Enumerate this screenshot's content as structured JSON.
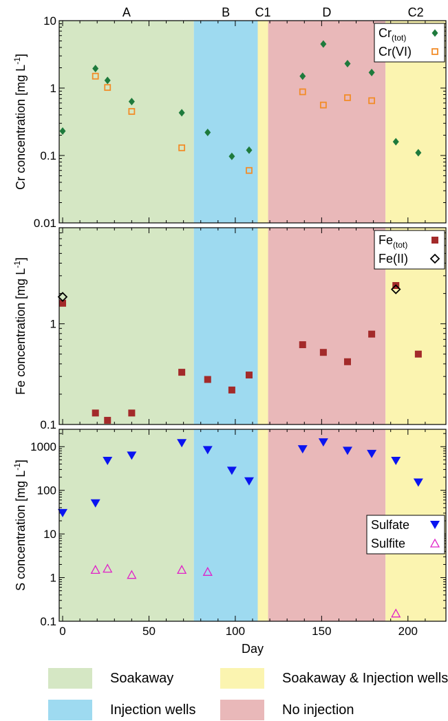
{
  "chart_data": {
    "type": "scatter",
    "xlabel": "Day",
    "xlim": [
      -2,
      222
    ],
    "xticks": [
      0,
      50,
      100,
      150,
      200
    ],
    "phases": [
      {
        "label": "A",
        "key": "soakaway",
        "x0": -2,
        "x1": 76
      },
      {
        "label": "B",
        "key": "injection",
        "x0": 76,
        "x1": 113
      },
      {
        "label": "C1",
        "key": "both",
        "x0": 113,
        "x1": 119
      },
      {
        "label": "D",
        "key": "none",
        "x0": 119,
        "x1": 187
      },
      {
        "label": "C2",
        "key": "both",
        "x0": 187,
        "x1": 222
      }
    ],
    "phase_colors": {
      "soakaway": "#d5e7c4",
      "injection": "#9edaf0",
      "both": "#fbf4b0",
      "none": "#e9b8b9"
    },
    "panels": [
      {
        "ylabel": "Cr concentration [mg L",
        "ylabel_sup": "-1",
        "ylabel_end": "]",
        "yscale": "log",
        "ylim": [
          0.01,
          10
        ],
        "yticks": [
          {
            "v": 0.01,
            "t": "0.01"
          },
          {
            "v": 0.1,
            "t": "0.1"
          },
          {
            "v": 1,
            "t": "1"
          },
          {
            "v": 10,
            "t": "10"
          }
        ],
        "legend_position": "top-right",
        "series": [
          {
            "name": "Cr",
            "sub": "(tot)",
            "marker": "diamond-filled",
            "color": "#1e7a3c",
            "x": [
              0,
              19,
              26,
              40,
              69,
              84,
              98,
              108,
              139,
              151,
              165,
              179,
              193,
              206
            ],
            "y": [
              0.23,
              1.95,
              1.3,
              0.63,
              0.43,
              0.22,
              0.097,
              0.12,
              1.5,
              4.5,
              2.3,
              1.7,
              0.16,
              0.11
            ]
          },
          {
            "name": "Cr(VI)",
            "sub": "",
            "marker": "square-open",
            "color": "#f28c28",
            "x": [
              19,
              26,
              40,
              69,
              108,
              139,
              151,
              165,
              179
            ],
            "y": [
              1.5,
              1.02,
              0.45,
              0.13,
              0.06,
              0.88,
              0.56,
              0.72,
              0.65
            ]
          }
        ]
      },
      {
        "ylabel": "Fe concentration [mg L",
        "ylabel_sup": "-1",
        "ylabel_end": "]",
        "yscale": "log",
        "ylim": [
          0.1,
          9
        ],
        "yticks": [
          {
            "v": 0.1,
            "t": "0.1"
          },
          {
            "v": 1,
            "t": "1"
          }
        ],
        "legend_position": "top-right",
        "series": [
          {
            "name": "Fe",
            "sub": "(tot)",
            "marker": "square-filled",
            "color": "#a32a2a",
            "x": [
              0,
              19,
              26,
              40,
              69,
              84,
              98,
              108,
              139,
              151,
              165,
              179,
              193,
              206
            ],
            "y": [
              1.6,
              0.13,
              0.11,
              0.13,
              0.33,
              0.28,
              0.22,
              0.31,
              0.62,
              0.52,
              0.42,
              0.79,
              2.4,
              0.5
            ]
          },
          {
            "name": "Fe(II)",
            "sub": "",
            "marker": "diamond-open",
            "color": "#000000",
            "x": [
              0,
              193
            ],
            "y": [
              1.85,
              2.2
            ]
          }
        ]
      },
      {
        "ylabel": "S concentration [mg L",
        "ylabel_sup": "-1",
        "ylabel_end": "]",
        "yscale": "log",
        "ylim": [
          0.1,
          2500
        ],
        "yticks": [
          {
            "v": 0.1,
            "t": "0.1"
          },
          {
            "v": 1,
            "t": "1"
          },
          {
            "v": 10,
            "t": "10"
          },
          {
            "v": 100,
            "t": "100"
          },
          {
            "v": 1000,
            "t": "1000"
          }
        ],
        "legend_position": "bottom-right",
        "series": [
          {
            "name": "Sulfate",
            "sub": "",
            "marker": "triangle-down-filled",
            "color": "#0a14f0",
            "x": [
              0,
              19,
              26,
              40,
              69,
              84,
              98,
              108,
              139,
              151,
              165,
              179,
              193,
              206
            ],
            "y": [
              30,
              50,
              470,
              620,
              1200,
              830,
              280,
              160,
              870,
              1250,
              800,
              680,
              470,
              150
            ]
          },
          {
            "name": "Sulfite",
            "sub": "",
            "marker": "triangle-up-open",
            "color": "#e020c8",
            "x": [
              19,
              26,
              40,
              69,
              84,
              193
            ],
            "y": [
              1.5,
              1.6,
              1.15,
              1.5,
              1.35,
              0.15
            ]
          }
        ]
      }
    ]
  },
  "legend": [
    {
      "key": "soakaway",
      "label": "Soakaway"
    },
    {
      "key": "both",
      "label": "Soakaway & Injection wells"
    },
    {
      "key": "injection",
      "label": "Injection wells"
    },
    {
      "key": "none",
      "label": "No injection"
    }
  ]
}
